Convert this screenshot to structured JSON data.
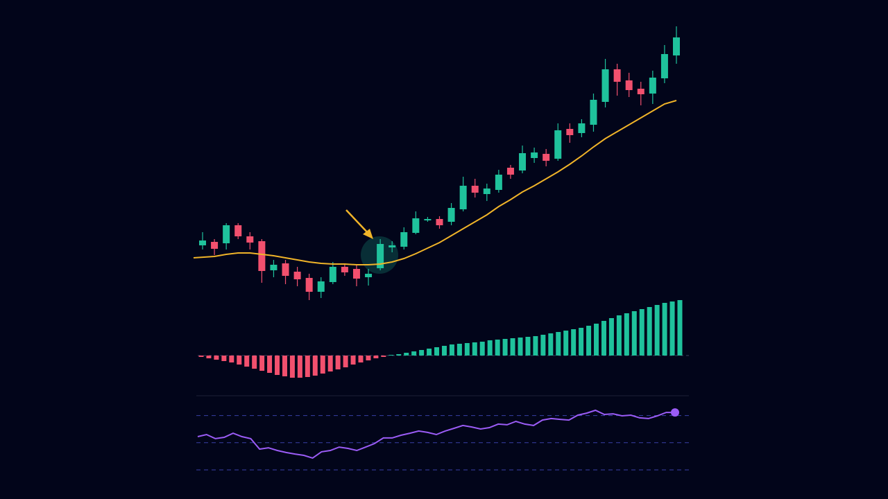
{
  "chart_data": [
    {
      "type": "candlestick",
      "up_color": "#1fc29c",
      "down_color": "#f2506e",
      "ylim": [
        280,
        700
      ],
      "open": [
        366,
        371,
        369,
        395,
        379,
        372,
        330,
        340,
        328,
        319,
        299,
        313,
        335,
        332,
        320,
        333,
        363,
        364,
        384,
        402,
        404,
        400,
        418,
        452,
        440,
        446,
        478,
        474,
        492,
        498,
        491,
        534,
        528,
        540,
        573,
        620,
        604,
        592,
        585,
        607,
        640
      ],
      "high": [
        385,
        375,
        398,
        398,
        385,
        375,
        345,
        345,
        335,
        325,
        320,
        342,
        340,
        337,
        332,
        375,
        372,
        392,
        415,
        407,
        408,
        427,
        465,
        462,
        455,
        475,
        482,
        510,
        507,
        505,
        542,
        542,
        548,
        585,
        635,
        628,
        615,
        602,
        618,
        655,
        682
      ],
      "low": [
        360,
        352,
        360,
        375,
        360,
        312,
        320,
        310,
        307,
        287,
        290,
        310,
        322,
        307,
        308,
        330,
        356,
        360,
        382,
        400,
        390,
        395,
        415,
        435,
        430,
        442,
        462,
        470,
        485,
        480,
        488,
        514,
        522,
        530,
        565,
        582,
        580,
        568,
        570,
        600,
        628
      ],
      "close": [
        373,
        361,
        395,
        379,
        370,
        329,
        338,
        322,
        317,
        299,
        314,
        335,
        327,
        318,
        325,
        368,
        366,
        385,
        405,
        404,
        395,
        420,
        452,
        442,
        448,
        468,
        468,
        499,
        500,
        488,
        532,
        525,
        542,
        576,
        620,
        602,
        590,
        584,
        608,
        642,
        666
      ],
      "ma": {
        "color": "#f0b429",
        "values": [
          348,
          350,
          353,
          355,
          355,
          353,
          351,
          348,
          345,
          342,
          340,
          339,
          339,
          338,
          338,
          339,
          342,
          347,
          354,
          362,
          370,
          380,
          390,
          400,
          410,
          422,
          432,
          443,
          452,
          462,
          472,
          483,
          495,
          508,
          520,
          530,
          540,
          550,
          560,
          570,
          575
        ]
      }
    },
    {
      "type": "bar",
      "up_color": "#1fc29c",
      "down_color": "#f2506e",
      "ylim": [
        -37,
        88
      ],
      "values": [
        -2,
        -4,
        -6,
        -8,
        -10,
        -13,
        -16,
        -19,
        -22,
        -25,
        -28,
        -30,
        -32,
        -32,
        -31,
        -29,
        -26,
        -23,
        -20,
        -17,
        -13,
        -10,
        -7,
        -4,
        -2,
        1,
        2,
        4,
        6,
        8,
        10,
        12,
        14,
        16,
        17,
        18,
        19,
        20,
        22,
        23,
        24,
        25,
        26,
        27,
        28,
        30,
        32,
        34,
        36,
        38,
        40,
        43,
        46,
        50,
        54,
        58,
        61,
        64,
        67,
        70,
        73,
        76,
        78,
        80
      ]
    },
    {
      "type": "line",
      "color": "#9b5cf6",
      "ylim": [
        30,
        80
      ],
      "yticks": [
        30,
        50,
        70
      ],
      "grid": true,
      "values": [
        54.5,
        56.0,
        53.0,
        54.0,
        57.0,
        54.5,
        53.0,
        45.3,
        46.3,
        44.3,
        42.8,
        41.7,
        40.7,
        38.7,
        43.3,
        44.3,
        46.8,
        45.8,
        44.3,
        46.8,
        49.4,
        53.5,
        53.5,
        55.5,
        57.0,
        58.6,
        57.6,
        56.0,
        58.6,
        60.6,
        62.7,
        61.6,
        60.1,
        61.1,
        63.7,
        63.2,
        65.7,
        63.7,
        62.7,
        66.7,
        67.8,
        67.2,
        66.7,
        70.3,
        71.8,
        73.9,
        70.8,
        71.3,
        69.8,
        70.3,
        68.3,
        67.8,
        69.8,
        72.3,
        72.3
      ]
    }
  ]
}
